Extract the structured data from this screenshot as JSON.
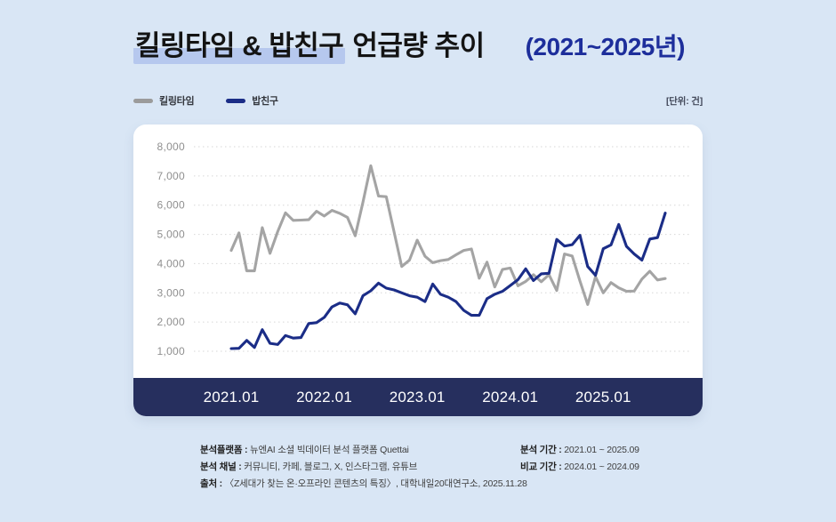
{
  "page": {
    "background": "#d9e6f5",
    "card_background": "#ffffff",
    "band_color": "#262f5e",
    "highlight_color": "#b6c8ee"
  },
  "header": {
    "title_highlight": "킬링타임 & 밥친구",
    "title_rest": " 언급량 추이",
    "period": "(2021~2025년)",
    "period_color": "#1d2e9b",
    "unit_note": "[단위: 건]"
  },
  "legend": [
    {
      "label": "킬링타임",
      "color": "#9b9b9b"
    },
    {
      "label": "밥친구",
      "color": "#1b2d87"
    }
  ],
  "chart_data": {
    "type": "line",
    "title": "킬링타임 & 밥친구 언급량 추이 (2021~2025년)",
    "unit": "건",
    "x_start": "2021.01",
    "x_end": "2025.09",
    "x_ticks": [
      "2021.01",
      "2022.01",
      "2023.01",
      "2024.01",
      "2025.01"
    ],
    "y_ticks": [
      "8,000",
      "7,000",
      "6,000",
      "5,000",
      "4,000",
      "3,000",
      "2,000",
      "1,000"
    ],
    "ylim": [
      1000,
      8000
    ],
    "grid": "dotted-horizontal",
    "legend_position": "top-left",
    "series": [
      {
        "name": "킬링타임",
        "key": "killingtime",
        "color": "#a4a4a4",
        "values": [
          4450,
          5050,
          3750,
          3750,
          5230,
          4350,
          5100,
          5740,
          5480,
          5490,
          5500,
          5790,
          5630,
          5820,
          5720,
          5580,
          4950,
          6100,
          7350,
          6310,
          6290,
          5100,
          3900,
          4120,
          4800,
          4250,
          4030,
          4100,
          4140,
          4300,
          4450,
          4500,
          3500,
          4050,
          3200,
          3800,
          3850,
          3240,
          3390,
          3620,
          3380,
          3620,
          3080,
          4330,
          4260,
          3400,
          2600,
          3550,
          3000,
          3350,
          3170,
          3050,
          3060,
          3470,
          3740,
          3440,
          3490
        ]
      },
      {
        "name": "밥친구",
        "key": "bapchingu",
        "color": "#1b2d87",
        "values": [
          1090,
          1100,
          1370,
          1130,
          1740,
          1270,
          1230,
          1540,
          1450,
          1470,
          1950,
          1980,
          2160,
          2520,
          2650,
          2590,
          2280,
          2900,
          3070,
          3330,
          3160,
          3100,
          3000,
          2900,
          2850,
          2700,
          3300,
          2950,
          2850,
          2700,
          2400,
          2230,
          2230,
          2800,
          2950,
          3050,
          3250,
          3450,
          3820,
          3420,
          3650,
          3670,
          4830,
          4600,
          4650,
          4970,
          3900,
          3600,
          4510,
          4640,
          5340,
          4590,
          4330,
          4120,
          4840,
          4890,
          5730
        ]
      }
    ]
  },
  "footer": {
    "left": [
      {
        "label": "분석플랫폼 :",
        "text": "뉴엔AI 소셜 빅데이터 분석 플랫폼 Quettai"
      },
      {
        "label": "분석 채널 :",
        "text": "커뮤니티, 카페, 블로그, X, 인스타그램, 유튜브"
      },
      {
        "label": "출처 :",
        "text": "〈Z세대가 찾는 온·오프라인 콘텐츠의 특징〉, 대학내일20대연구소, 2025.11.28"
      }
    ],
    "right": [
      {
        "label": "분석 기간 :",
        "text": "2021.01 ~ 2025.09"
      },
      {
        "label": "비교 기간 :",
        "text": "2024.01 ~ 2024.09"
      }
    ]
  }
}
